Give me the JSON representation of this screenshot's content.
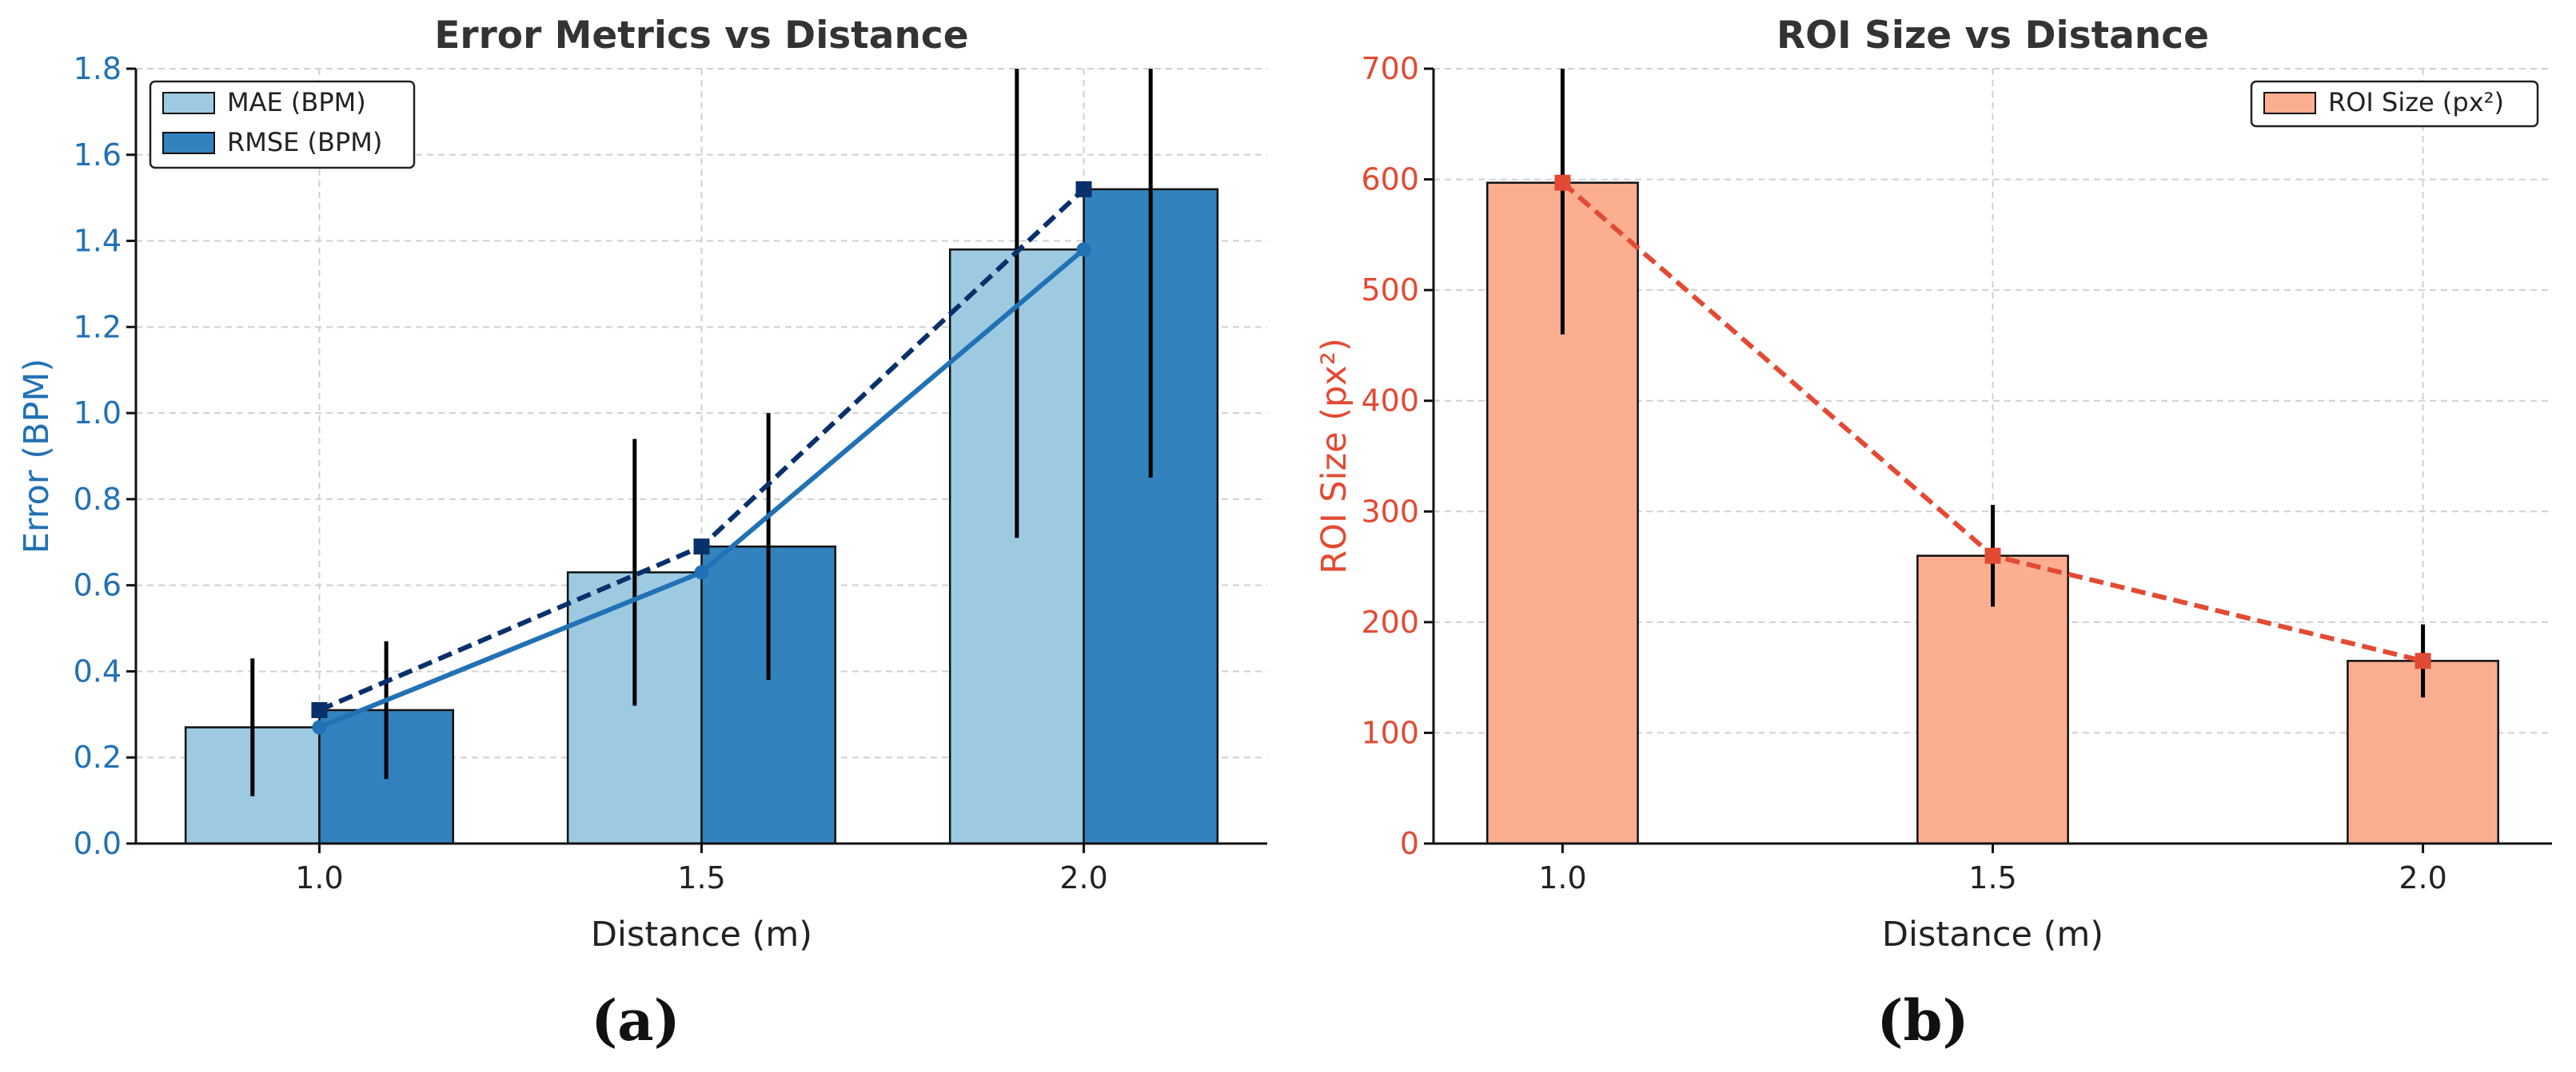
{
  "chart_data": [
    {
      "type": "bar",
      "title": "Error Metrics vs Distance",
      "xlabel": "Distance (m)",
      "ylabel": "Error (BPM)",
      "ylim": [
        0,
        1.8
      ],
      "yticks": [
        "0.0",
        "0.2",
        "0.4",
        "0.6",
        "0.8",
        "1.0",
        "1.2",
        "1.4",
        "1.6",
        "1.8"
      ],
      "categories": [
        "1.0",
        "1.5",
        "2.0"
      ],
      "grid": true,
      "legend_position": "top-left",
      "series": [
        {
          "name": "MAE (BPM)",
          "values": [
            0.27,
            0.63,
            1.38
          ],
          "errors": [
            0.16,
            0.31,
            0.67
          ],
          "bar_color": "#9ecae1",
          "line_color": "#2171b5",
          "line_style": "solid",
          "marker": "circle"
        },
        {
          "name": "RMSE (BPM)",
          "values": [
            0.31,
            0.69,
            1.52
          ],
          "errors": [
            0.16,
            0.31,
            0.67
          ],
          "bar_color": "#3182bd",
          "line_color": "#08306b",
          "line_style": "dashed",
          "marker": "square"
        }
      ],
      "axis_color": "#2171b5",
      "caption": "(a)"
    },
    {
      "type": "bar",
      "title": "ROI Size vs Distance",
      "xlabel": "Distance (m)",
      "ylabel": "ROI Size (px²)",
      "ylim": [
        0,
        700
      ],
      "yticks": [
        "0",
        "100",
        "200",
        "300",
        "400",
        "500",
        "600",
        "700"
      ],
      "categories": [
        "1.0",
        "1.5",
        "2.0"
      ],
      "grid": true,
      "legend_position": "top-right",
      "series": [
        {
          "name": "ROI Size (px²)",
          "values": [
            597,
            260,
            165
          ],
          "errors": [
            137,
            46,
            33
          ],
          "bar_color": "#fcae91",
          "line_color": "#e34a33",
          "line_style": "dashed",
          "marker": "square"
        }
      ],
      "axis_color": "#e34a33",
      "caption": "(b)"
    }
  ]
}
